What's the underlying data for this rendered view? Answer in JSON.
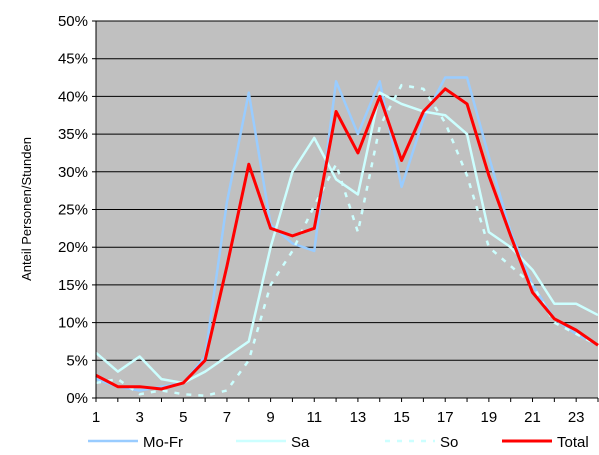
{
  "chart_data": {
    "type": "line",
    "title": "",
    "xlabel": "",
    "ylabel": "Anteil Personen/Stunden",
    "x": [
      1,
      2,
      3,
      4,
      5,
      6,
      7,
      8,
      9,
      10,
      11,
      12,
      13,
      14,
      15,
      16,
      17,
      18,
      19,
      20,
      21,
      22,
      23,
      24
    ],
    "x_tick_labels": [
      "1",
      "3",
      "5",
      "7",
      "9",
      "11",
      "13",
      "15",
      "17",
      "19",
      "21",
      "23"
    ],
    "xlim": [
      1,
      24
    ],
    "ylim": [
      0,
      50
    ],
    "y_ticks": [
      0,
      5,
      10,
      15,
      20,
      25,
      30,
      35,
      40,
      45,
      50
    ],
    "y_unit": "%",
    "grid": "horizontal",
    "legend_position": "bottom",
    "plot_background": "#c0c0c0",
    "series": [
      {
        "name": "Mo-Fr",
        "color": "#99ccff",
        "style": "solid",
        "values": [
          2.5,
          1.5,
          1.0,
          1.5,
          2.0,
          5.5,
          26.0,
          40.5,
          23.0,
          20.5,
          19.5,
          42.0,
          35.0,
          42.0,
          28.0,
          37.0,
          42.5,
          42.5,
          32.0,
          22.0,
          15.0,
          10.5,
          8.5,
          7.0
        ]
      },
      {
        "name": "Sa",
        "color": "#ccffff",
        "style": "solid",
        "values": [
          6.0,
          3.5,
          5.5,
          2.5,
          2.0,
          3.5,
          5.5,
          7.5,
          20.0,
          30.0,
          34.5,
          29.0,
          27.0,
          40.5,
          39.0,
          38.0,
          37.5,
          35.0,
          22.0,
          20.0,
          17.0,
          12.5,
          12.5,
          11.0
        ]
      },
      {
        "name": "So",
        "color": "#ccffff",
        "style": "dashed",
        "values": [
          2.0,
          2.5,
          0.5,
          1.0,
          0.5,
          0.3,
          1.0,
          5.0,
          15.0,
          19.5,
          25.5,
          31.0,
          22.0,
          36.0,
          41.5,
          41.0,
          36.5,
          29.5,
          20.0,
          17.5,
          15.0,
          10.0,
          8.5,
          7.0
        ]
      },
      {
        "name": "Total",
        "color": "#ff0000",
        "style": "solid",
        "values": [
          3.0,
          1.5,
          1.5,
          1.2,
          2.0,
          5.0,
          17.5,
          31.0,
          22.5,
          21.5,
          22.5,
          38.0,
          32.5,
          40.0,
          31.5,
          38.0,
          41.0,
          39.0,
          29.5,
          21.5,
          14.0,
          10.5,
          9.0,
          7.0
        ]
      }
    ]
  }
}
